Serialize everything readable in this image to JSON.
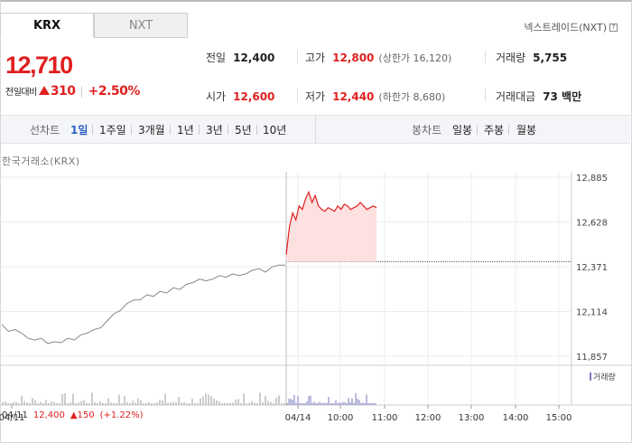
{
  "market_tabs": [
    {
      "label": "KRX",
      "active": true
    },
    {
      "label": "NXT",
      "active": false
    }
  ],
  "nxt_link": {
    "label": "넥스트레이드(NXT)",
    "icon": "question-icon"
  },
  "price": {
    "current": "12,710",
    "change_label": "전일대비",
    "change_value": "310",
    "change_rate": "+2.50%",
    "direction_icon": "triangle-up-icon"
  },
  "stats": {
    "prev_close": {
      "label": "전일",
      "value": "12,400"
    },
    "open": {
      "label": "시가",
      "value": "12,600"
    },
    "high": {
      "label": "고가",
      "value": "12,800",
      "sub": "(상한가 16,120)"
    },
    "low": {
      "label": "저가",
      "value": "12,440",
      "sub": "(하한가 8,680)"
    },
    "volume": {
      "label": "거래량",
      "value": "5,755"
    },
    "trade_value": {
      "label": "거래대금",
      "value": "73 백만"
    }
  },
  "toolbar": {
    "line_label": "선차트",
    "line_periods": [
      "1일",
      "1주일",
      "3개월",
      "1년",
      "3년",
      "5년",
      "10년"
    ],
    "active_period": "1일",
    "candle_label": "봉차트",
    "candle_periods": [
      "일봉",
      "주봉",
      "월봉"
    ]
  },
  "chart": {
    "exchange_label": "한국거래소(KRX)",
    "y_ticks": [
      "12,885",
      "12,628",
      "12,371",
      "12,114",
      "11,857"
    ],
    "x_ticks": [
      "04/11",
      "04/14",
      "10:00",
      "11:00",
      "12:00",
      "13:00",
      "14:00",
      "15:00"
    ],
    "volume_legend": "거래량",
    "ref_date": "04/11",
    "ref_price": "12,400",
    "ref_change": "▲150",
    "ref_rate": "(+1.22%)",
    "colors": {
      "up": "#e02020",
      "prev_line": "#888888",
      "fill": "#fde0e0",
      "volume": "#7b7bbf"
    }
  },
  "chart_data": {
    "type": "line",
    "ylim": [
      11857,
      12885
    ],
    "y_ticks": [
      12885,
      12628,
      12371,
      12114,
      11857
    ],
    "series": [
      {
        "name": "",
        "segment": "previous-session 04/11",
        "values": [
          12040,
          12000,
          12010,
          11990,
          11960,
          11950,
          11960,
          11930,
          11940,
          11935,
          11960,
          11950,
          11980,
          11990,
          12010,
          12020,
          12060,
          12100,
          12120,
          12160,
          12180,
          12180,
          12210,
          12200,
          12230,
          12220,
          12250,
          12240,
          12270,
          12280,
          12300,
          12290,
          12300,
          12320,
          12310,
          12330,
          12320,
          12330,
          12350,
          12360,
          12340,
          12370,
          12380,
          12380
        ]
      },
      {
        "name": "",
        "segment": "current-session 04/14",
        "values": [
          12440,
          12600,
          12680,
          12640,
          12720,
          12700,
          12760,
          12800,
          12740,
          12780,
          12720,
          12700,
          12690,
          12710,
          12700,
          12690,
          12720,
          12700,
          12730,
          12720,
          12700,
          12710,
          12720,
          12740,
          12720,
          12700,
          12710,
          12720,
          12710
        ]
      }
    ],
    "reference_line": 12400,
    "grid": true
  }
}
